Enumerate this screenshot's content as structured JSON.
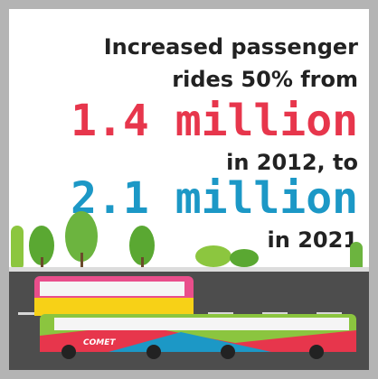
{
  "headline": {
    "line1": "Increased passenger",
    "line2": "rides 50% from",
    "figure1": "1.4 million",
    "line3": "in 2012, to",
    "figure2": "2.1 million",
    "line4": "in 2021"
  },
  "bus": {
    "label": "COMET"
  }
}
